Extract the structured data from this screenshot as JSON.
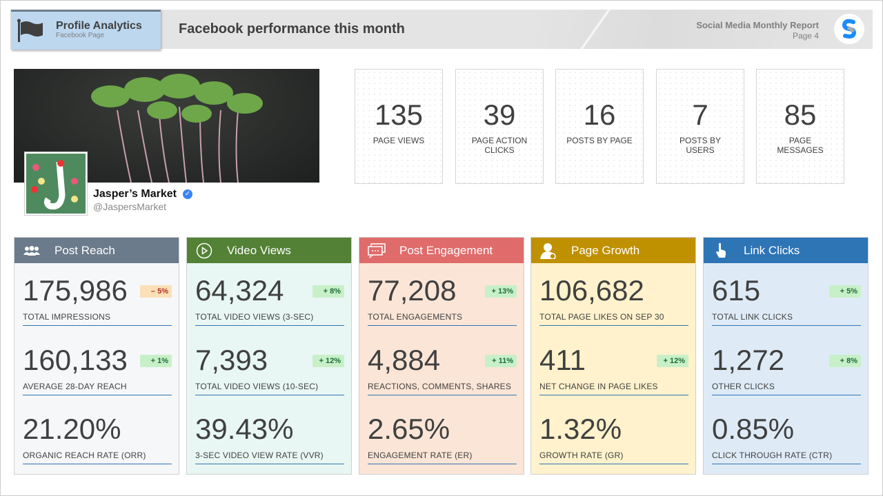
{
  "header": {
    "profile_title": "Profile Analytics",
    "profile_subtitle": "Facebook Page",
    "title": "Facebook performance this month",
    "report_title": "Social Media Monthly Report",
    "page": "Page 4"
  },
  "profile": {
    "name": "Jasper’s Market",
    "handle": "@JaspersMarket",
    "verified": true
  },
  "stats": [
    {
      "value": "135",
      "label": "PAGE VIEWS"
    },
    {
      "value": "39",
      "label": "PAGE ACTION CLICKS"
    },
    {
      "value": "16",
      "label": "POSTS BY PAGE"
    },
    {
      "value": "7",
      "label": "POSTS BY USERS"
    },
    {
      "value": "85",
      "label": "PAGE MESSAGES"
    }
  ],
  "cards": [
    {
      "title": "Post Reach",
      "icon": "users-icon",
      "color": "#6b7b8b",
      "bg": "#f5f7f9",
      "rows": [
        {
          "value": "175,986",
          "label": "TOTAL IMPRESSIONS",
          "badge": "– 5%",
          "trend": "down"
        },
        {
          "value": "160,133",
          "label": "AVERAGE 28-DAY REACH",
          "badge": "+ 1%",
          "trend": "up"
        },
        {
          "value": "21.20%",
          "label": "ORGANIC REACH RATE (ORR)"
        }
      ]
    },
    {
      "title": "Video Views",
      "icon": "play-icon",
      "color": "#538135",
      "bg": "#e8f7f3",
      "rows": [
        {
          "value": "64,324",
          "label": "TOTAL VIDEO VIEWS (3-SEC)",
          "badge": "+ 8%",
          "trend": "up"
        },
        {
          "value": "7,393",
          "label": "TOTAL VIDEO VIEWS (10-SEC)",
          "badge": "+ 12%",
          "trend": "up"
        },
        {
          "value": "39.43%",
          "label": "3-SEC VIDEO VIEW RATE (VVR)"
        }
      ]
    },
    {
      "title": "Post Engagement",
      "icon": "chat-icon",
      "color": "#e06b6b",
      "bg": "#fbe5d6",
      "rows": [
        {
          "value": "77,208",
          "label": "TOTAL ENGAGEMENTS",
          "badge": "+ 13%",
          "trend": "up"
        },
        {
          "value": "4,884",
          "label": "REACTIONS, COMMENTS, SHARES",
          "badge": "+ 11%",
          "trend": "up"
        },
        {
          "value": "2.65%",
          "label": "ENGAGEMENT RATE (ER)"
        }
      ]
    },
    {
      "title": "Page Growth",
      "icon": "user-add-icon",
      "color": "#bf9000",
      "bg": "#fff2cc",
      "rows": [
        {
          "value": "106,682",
          "label": "TOTAL PAGE LIKES ON SEP 30",
          "badge": null,
          "trend": null
        },
        {
          "value": "411",
          "label": "NET CHANGE IN PAGE LIKES",
          "badge": "+ 12%",
          "trend": "up"
        },
        {
          "value": "1.32%",
          "label": "GROWTH RATE (GR)"
        }
      ]
    },
    {
      "title": "Link Clicks",
      "icon": "pointer-hand-icon",
      "color": "#2e75b6",
      "bg": "#deebf7",
      "rows": [
        {
          "value": "615",
          "label": "TOTAL LINK CLICKS",
          "badge": "+ 5%",
          "trend": "up"
        },
        {
          "value": "1,272",
          "label": "OTHER CLICKS",
          "badge": "+ 8%",
          "trend": "up"
        },
        {
          "value": "0.85%",
          "label": "CLICK THROUGH RATE (CTR)"
        }
      ]
    }
  ]
}
